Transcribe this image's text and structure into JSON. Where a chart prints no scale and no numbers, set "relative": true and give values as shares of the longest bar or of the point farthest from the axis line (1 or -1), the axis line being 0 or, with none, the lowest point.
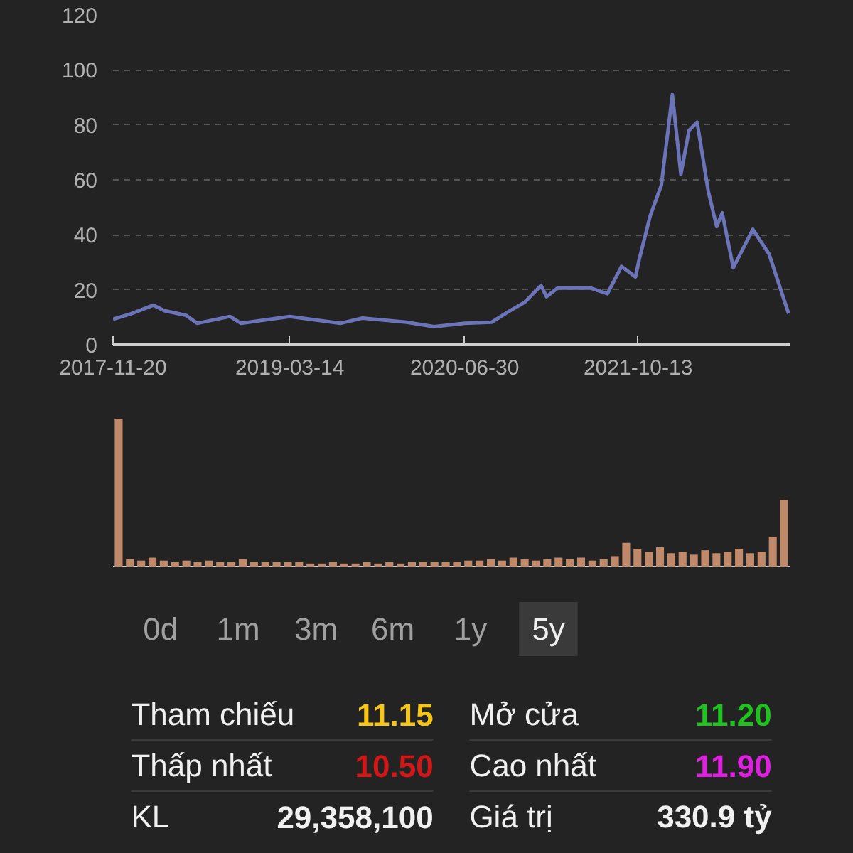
{
  "chart_data": [
    {
      "type": "line",
      "x": [
        "2017-11-20",
        "2018-01-08",
        "2018-03-09",
        "2018-04-08",
        "2018-06-06",
        "2018-07-06",
        "2018-10-03",
        "2018-11-02",
        "2019-03-14",
        "2019-07-29",
        "2019-09-27",
        "2020-01-24",
        "2020-04-08",
        "2020-06-30",
        "2020-09-11",
        "2020-10-26",
        "2020-12-10",
        "2021-01-23",
        "2021-02-07",
        "2021-03-09",
        "2021-06-07",
        "2021-07-22",
        "2021-08-29",
        "2021-10-06",
        "2021-10-16",
        "2021-11-15",
        "2021-12-15",
        "2022-01-14",
        "2022-02-06",
        "2022-02-28",
        "2022-03-22",
        "2022-04-21",
        "2022-05-14",
        "2022-05-29",
        "2022-06-28",
        "2022-08-20",
        "2022-10-03",
        "2022-11-25"
      ],
      "series": [
        {
          "color": "#6b74b8",
          "values": [
            9.3,
            11.3,
            14.4,
            12.4,
            10.7,
            7.8,
            10.3,
            7.8,
            10.3,
            7.8,
            9.7,
            8.2,
            6.6,
            7.8,
            8.2,
            12,
            15.5,
            21.6,
            17.5,
            20.6,
            20.6,
            18.6,
            28.5,
            24.7,
            31,
            47,
            58,
            91,
            62,
            78,
            81,
            56,
            43,
            48,
            28,
            42,
            33,
            11.3
          ]
        }
      ],
      "xlim": [
        "2017-11-20",
        "2022-11-28"
      ],
      "xticks": [
        "2017-11-20",
        "2019-03-14",
        "2020-06-30",
        "2021-10-13"
      ],
      "ylim": [
        0,
        120
      ],
      "yticks": [
        0,
        20,
        40,
        60,
        80,
        100,
        120
      ],
      "grid": "y",
      "line_style": "solid"
    },
    {
      "type": "bar",
      "relative": true,
      "categories": [
        null,
        null,
        null,
        null,
        null,
        null,
        null,
        null,
        null,
        null,
        null,
        null,
        null,
        null,
        null,
        null,
        null,
        null,
        null,
        null,
        null,
        null,
        null,
        null,
        null,
        null,
        null,
        null,
        null,
        null,
        null,
        null,
        null,
        null,
        null,
        null,
        null,
        null,
        null,
        null,
        null,
        null,
        null,
        null,
        null,
        null,
        null,
        null,
        null,
        null,
        null,
        null,
        null,
        null,
        null,
        null,
        null,
        null,
        null,
        null
      ],
      "values": [
        1.0,
        0.05,
        0.04,
        0.06,
        0.04,
        0.03,
        0.04,
        0.03,
        0.04,
        0.03,
        0.03,
        0.05,
        0.03,
        0.03,
        0.03,
        0.03,
        0.03,
        0.02,
        0.02,
        0.03,
        0.02,
        0.02,
        0.03,
        0.02,
        0.03,
        0.02,
        0.03,
        0.03,
        0.03,
        0.03,
        0.03,
        0.04,
        0.04,
        0.05,
        0.04,
        0.06,
        0.05,
        0.04,
        0.05,
        0.06,
        0.05,
        0.06,
        0.04,
        0.05,
        0.07,
        0.16,
        0.12,
        0.1,
        0.13,
        0.09,
        0.1,
        0.08,
        0.11,
        0.09,
        0.1,
        0.12,
        0.09,
        0.1,
        0.2,
        0.45
      ],
      "color": "#c08a6a"
    },
    {
      "type": "other",
      "annotations": [
        "0d",
        "1m",
        "3m",
        "6m",
        "1y",
        "5y",
        "Tham chiếu",
        "11.15",
        "Mở cửa",
        "11.20",
        "Thấp nhất",
        "10.50",
        "Cao nhất",
        "11.90",
        "KL",
        "29,358,100",
        "Giá trị",
        "330.9 tỷ"
      ],
      "colors": [
        "#f0f0f0",
        "#f5c518",
        "#f0f0f0",
        "#1fc21f",
        "#f0f0f0",
        "#d01818",
        "#f0f0f0",
        "#e020e0",
        "#f0f0f0",
        "#f0f0f0",
        "#f0f0f0",
        "#f0f0f0"
      ]
    }
  ]
}
